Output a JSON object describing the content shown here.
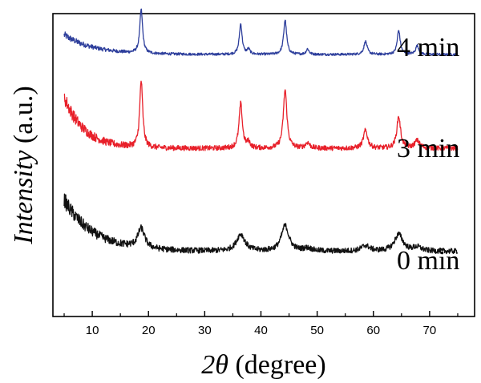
{
  "chart_data": {
    "type": "line",
    "xlabel_italic": "2θ",
    "xlabel_rest": " (degree)",
    "ylabel_italic": "Intensity",
    "ylabel_rest": " (a.u.)",
    "xlim": [
      3,
      78
    ],
    "xticks": [
      10,
      20,
      30,
      40,
      50,
      60,
      70
    ],
    "xtick_labels": [
      "10",
      "20",
      "30",
      "40",
      "50",
      "60",
      "70"
    ],
    "y_ticks_labeled": false,
    "x_range": [
      5,
      75
    ],
    "peak_positions": [
      18.7,
      36.4,
      37.8,
      44.3,
      48.3,
      58.6,
      64.5,
      67.8
    ],
    "series": [
      {
        "name": "4 min",
        "label": "4 min",
        "color": "#2e3f9c",
        "baseline": 0.865,
        "background": [
          0.065,
          1.3
        ],
        "noise": 0.004,
        "peak_heights": [
          0.8,
          0.56,
          0.09,
          0.63,
          0.1,
          0.24,
          0.44,
          0.16
        ],
        "peak_widths": [
          0.3,
          0.3,
          0.3,
          0.32,
          0.3,
          0.35,
          0.32,
          0.35
        ]
      },
      {
        "name": "3 min",
        "label": "3 min",
        "color": "#e8202a",
        "baseline": 0.555,
        "background": [
          0.17,
          0.9
        ],
        "noise": 0.008,
        "peak_heights": [
          1.22,
          0.82,
          0.1,
          1.07,
          0.1,
          0.33,
          0.58,
          0.14
        ],
        "peak_widths": [
          0.32,
          0.35,
          0.35,
          0.38,
          0.45,
          0.45,
          0.4,
          0.55
        ]
      },
      {
        "name": "0 min",
        "label": "0 min",
        "color": "#111111",
        "baseline": 0.215,
        "background": [
          0.17,
          1.3
        ],
        "noise": 0.009,
        "peak_heights": [
          0.36,
          0.31,
          0.0,
          0.47,
          0.05,
          0.1,
          0.31,
          0.07
        ],
        "peak_widths": [
          0.75,
          0.9,
          0.6,
          0.8,
          1.0,
          0.9,
          0.9,
          0.9
        ]
      }
    ]
  }
}
